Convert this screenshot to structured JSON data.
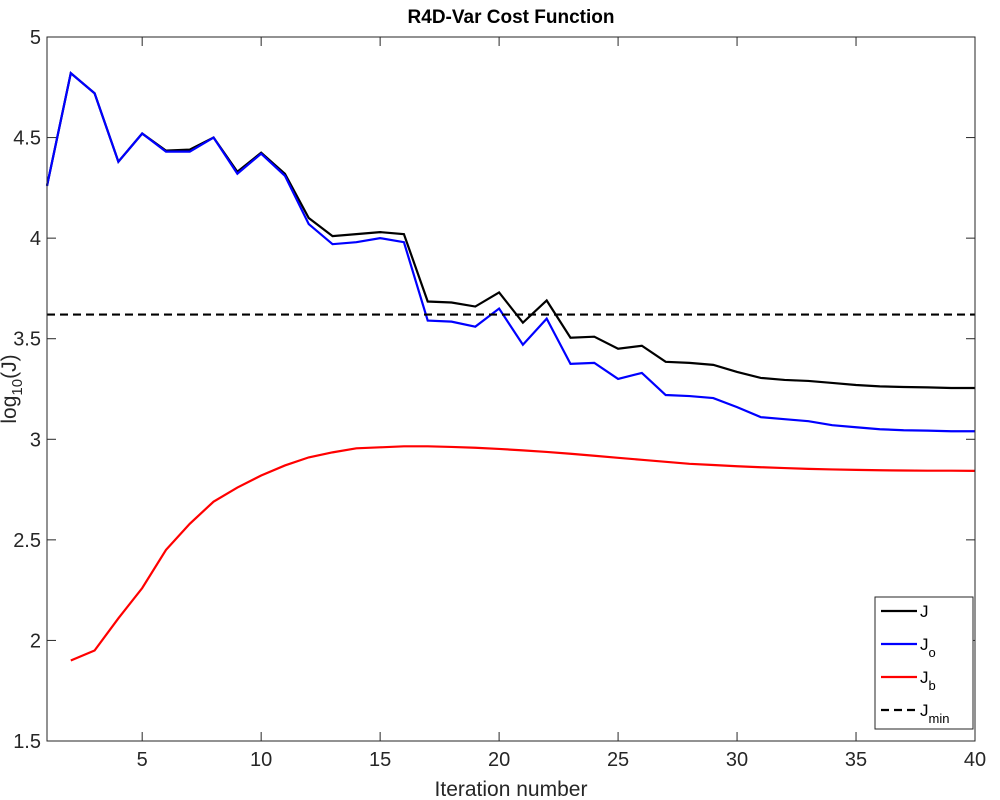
{
  "chart_data": {
    "type": "line",
    "title": "R4D-Var Cost Function",
    "xlabel": "Iteration number",
    "ylabel": "log10(J)",
    "xlim": [
      1,
      40
    ],
    "ylim": [
      1.5,
      5
    ],
    "xticks": [
      5,
      10,
      15,
      20,
      25,
      30,
      35,
      40
    ],
    "yticks": [
      1.5,
      2,
      2.5,
      3,
      3.5,
      4,
      4.5,
      5
    ],
    "legend_position": "bottom-right",
    "series": [
      {
        "name": "J",
        "label_main": "J",
        "label_sub": "",
        "color": "#000000",
        "style": "solid",
        "x": [
          1,
          2,
          3,
          4,
          5,
          6,
          7,
          8,
          9,
          10,
          11,
          12,
          13,
          14,
          15,
          16,
          17,
          18,
          19,
          20,
          21,
          22,
          23,
          24,
          25,
          26,
          27,
          28,
          29,
          30,
          31,
          32,
          33,
          34,
          35,
          36,
          37,
          38,
          39,
          40
        ],
        "y": [
          4.26,
          4.82,
          4.72,
          4.38,
          4.52,
          4.435,
          4.44,
          4.5,
          4.33,
          4.425,
          4.32,
          4.1,
          4.01,
          4.02,
          4.03,
          4.02,
          3.685,
          3.68,
          3.66,
          3.73,
          3.58,
          3.69,
          3.505,
          3.51,
          3.45,
          3.465,
          3.385,
          3.38,
          3.37,
          3.335,
          3.305,
          3.295,
          3.29,
          3.28,
          3.27,
          3.263,
          3.26,
          3.258,
          3.255,
          3.255
        ]
      },
      {
        "name": "Jo",
        "label_main": "J",
        "label_sub": "o",
        "color": "#0000ff",
        "style": "solid",
        "x": [
          1,
          2,
          3,
          4,
          5,
          6,
          7,
          8,
          9,
          10,
          11,
          12,
          13,
          14,
          15,
          16,
          17,
          18,
          19,
          20,
          21,
          22,
          23,
          24,
          25,
          26,
          27,
          28,
          29,
          30,
          31,
          32,
          33,
          34,
          35,
          36,
          37,
          38,
          39,
          40
        ],
        "y": [
          4.26,
          4.82,
          4.72,
          4.38,
          4.52,
          4.43,
          4.43,
          4.5,
          4.32,
          4.42,
          4.31,
          4.07,
          3.97,
          3.98,
          4.0,
          3.98,
          3.59,
          3.585,
          3.56,
          3.65,
          3.47,
          3.6,
          3.375,
          3.38,
          3.3,
          3.33,
          3.22,
          3.215,
          3.205,
          3.16,
          3.11,
          3.1,
          3.09,
          3.07,
          3.06,
          3.05,
          3.045,
          3.043,
          3.04,
          3.04
        ]
      },
      {
        "name": "Jb",
        "label_main": "J",
        "label_sub": "b",
        "color": "#ff0000",
        "style": "solid",
        "x": [
          2,
          3,
          4,
          5,
          6,
          7,
          8,
          9,
          10,
          11,
          12,
          13,
          14,
          15,
          16,
          17,
          18,
          19,
          20,
          21,
          22,
          23,
          24,
          25,
          26,
          27,
          28,
          29,
          30,
          31,
          32,
          33,
          34,
          35,
          36,
          37,
          38,
          39,
          40
        ],
        "y": [
          1.9,
          1.95,
          2.11,
          2.26,
          2.45,
          2.58,
          2.69,
          2.76,
          2.82,
          2.87,
          2.91,
          2.935,
          2.955,
          2.96,
          2.965,
          2.965,
          2.962,
          2.958,
          2.952,
          2.945,
          2.937,
          2.928,
          2.918,
          2.908,
          2.898,
          2.888,
          2.878,
          2.872,
          2.866,
          2.861,
          2.857,
          2.853,
          2.85,
          2.848,
          2.846,
          2.845,
          2.844,
          2.844,
          2.843
        ]
      },
      {
        "name": "Jmin",
        "label_main": "J",
        "label_sub": "min",
        "color": "#000000",
        "style": "dashed",
        "x": [
          1,
          40
        ],
        "y": [
          3.62,
          3.62
        ]
      }
    ]
  }
}
